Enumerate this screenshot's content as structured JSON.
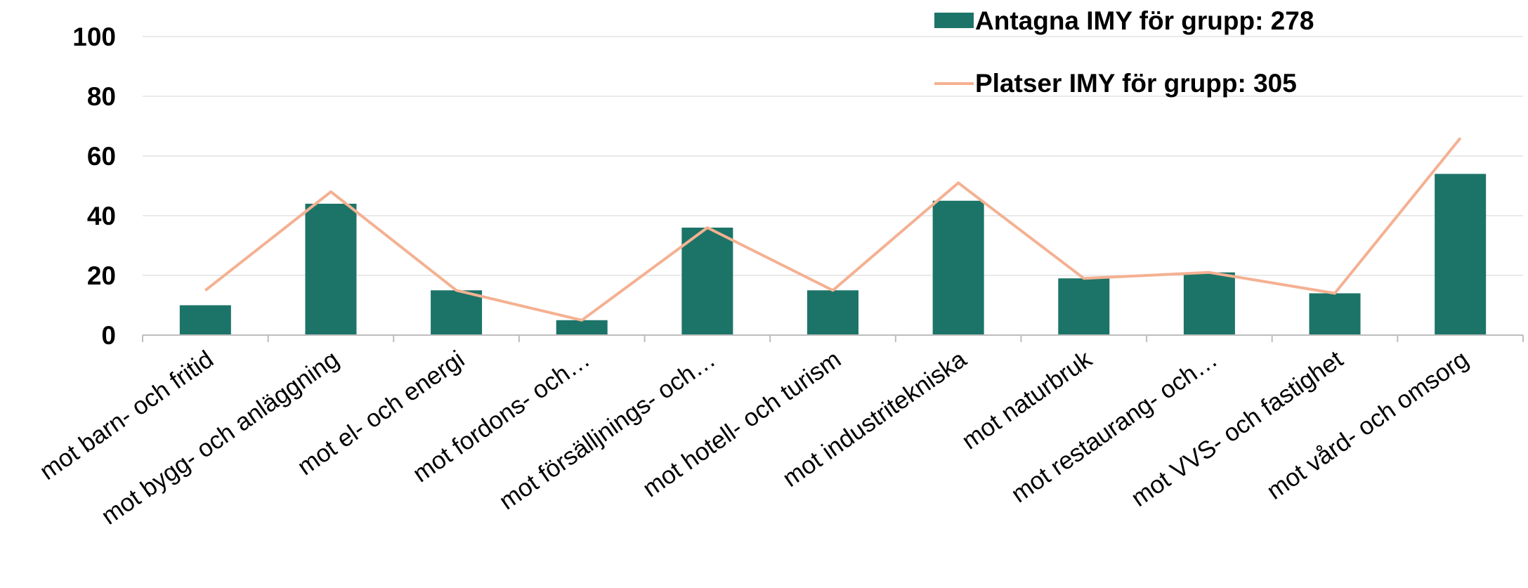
{
  "chart_data": {
    "type": "bar",
    "title": "",
    "xlabel": "",
    "ylabel": "",
    "ylim": [
      0,
      100
    ],
    "yticks": [
      0,
      20,
      40,
      60,
      80,
      100
    ],
    "grid": true,
    "legend_position": "top-right",
    "categories": [
      "mot barn- och fritid",
      "mot bygg- och anläggning",
      "mot el- och energi",
      "mot fordons- och…",
      "mot försälljnings- och…",
      "mot hotell- och turism",
      "mot industritekniska",
      "mot naturbruk",
      "mot restaurang- och…",
      "mot VVS- och fastighet",
      "mot vård- och omsorg"
    ],
    "series": [
      {
        "name": "Antagna IMY för grupp: 278",
        "kind": "bar",
        "color": "#1c7468",
        "values": [
          10,
          44,
          15,
          5,
          36,
          15,
          45,
          19,
          21,
          14,
          54
        ]
      },
      {
        "name": "Platser IMY för grupp: 305",
        "kind": "line",
        "color": "#f4b192",
        "values": [
          15,
          48,
          15,
          5,
          36,
          15,
          51,
          19,
          21,
          14,
          66
        ]
      }
    ]
  }
}
